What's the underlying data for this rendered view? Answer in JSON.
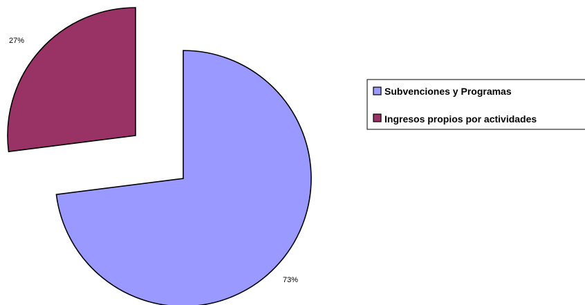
{
  "chart_data": {
    "type": "pie",
    "exploded": true,
    "slices": [
      {
        "label": "Subvenciones y Programas",
        "value": 73,
        "value_label": "73%",
        "color": "#9999FF"
      },
      {
        "label": "Ingresos propios por actividades",
        "value": 27,
        "value_label": "27%",
        "color": "#993366"
      }
    ],
    "legend_position": "right"
  }
}
